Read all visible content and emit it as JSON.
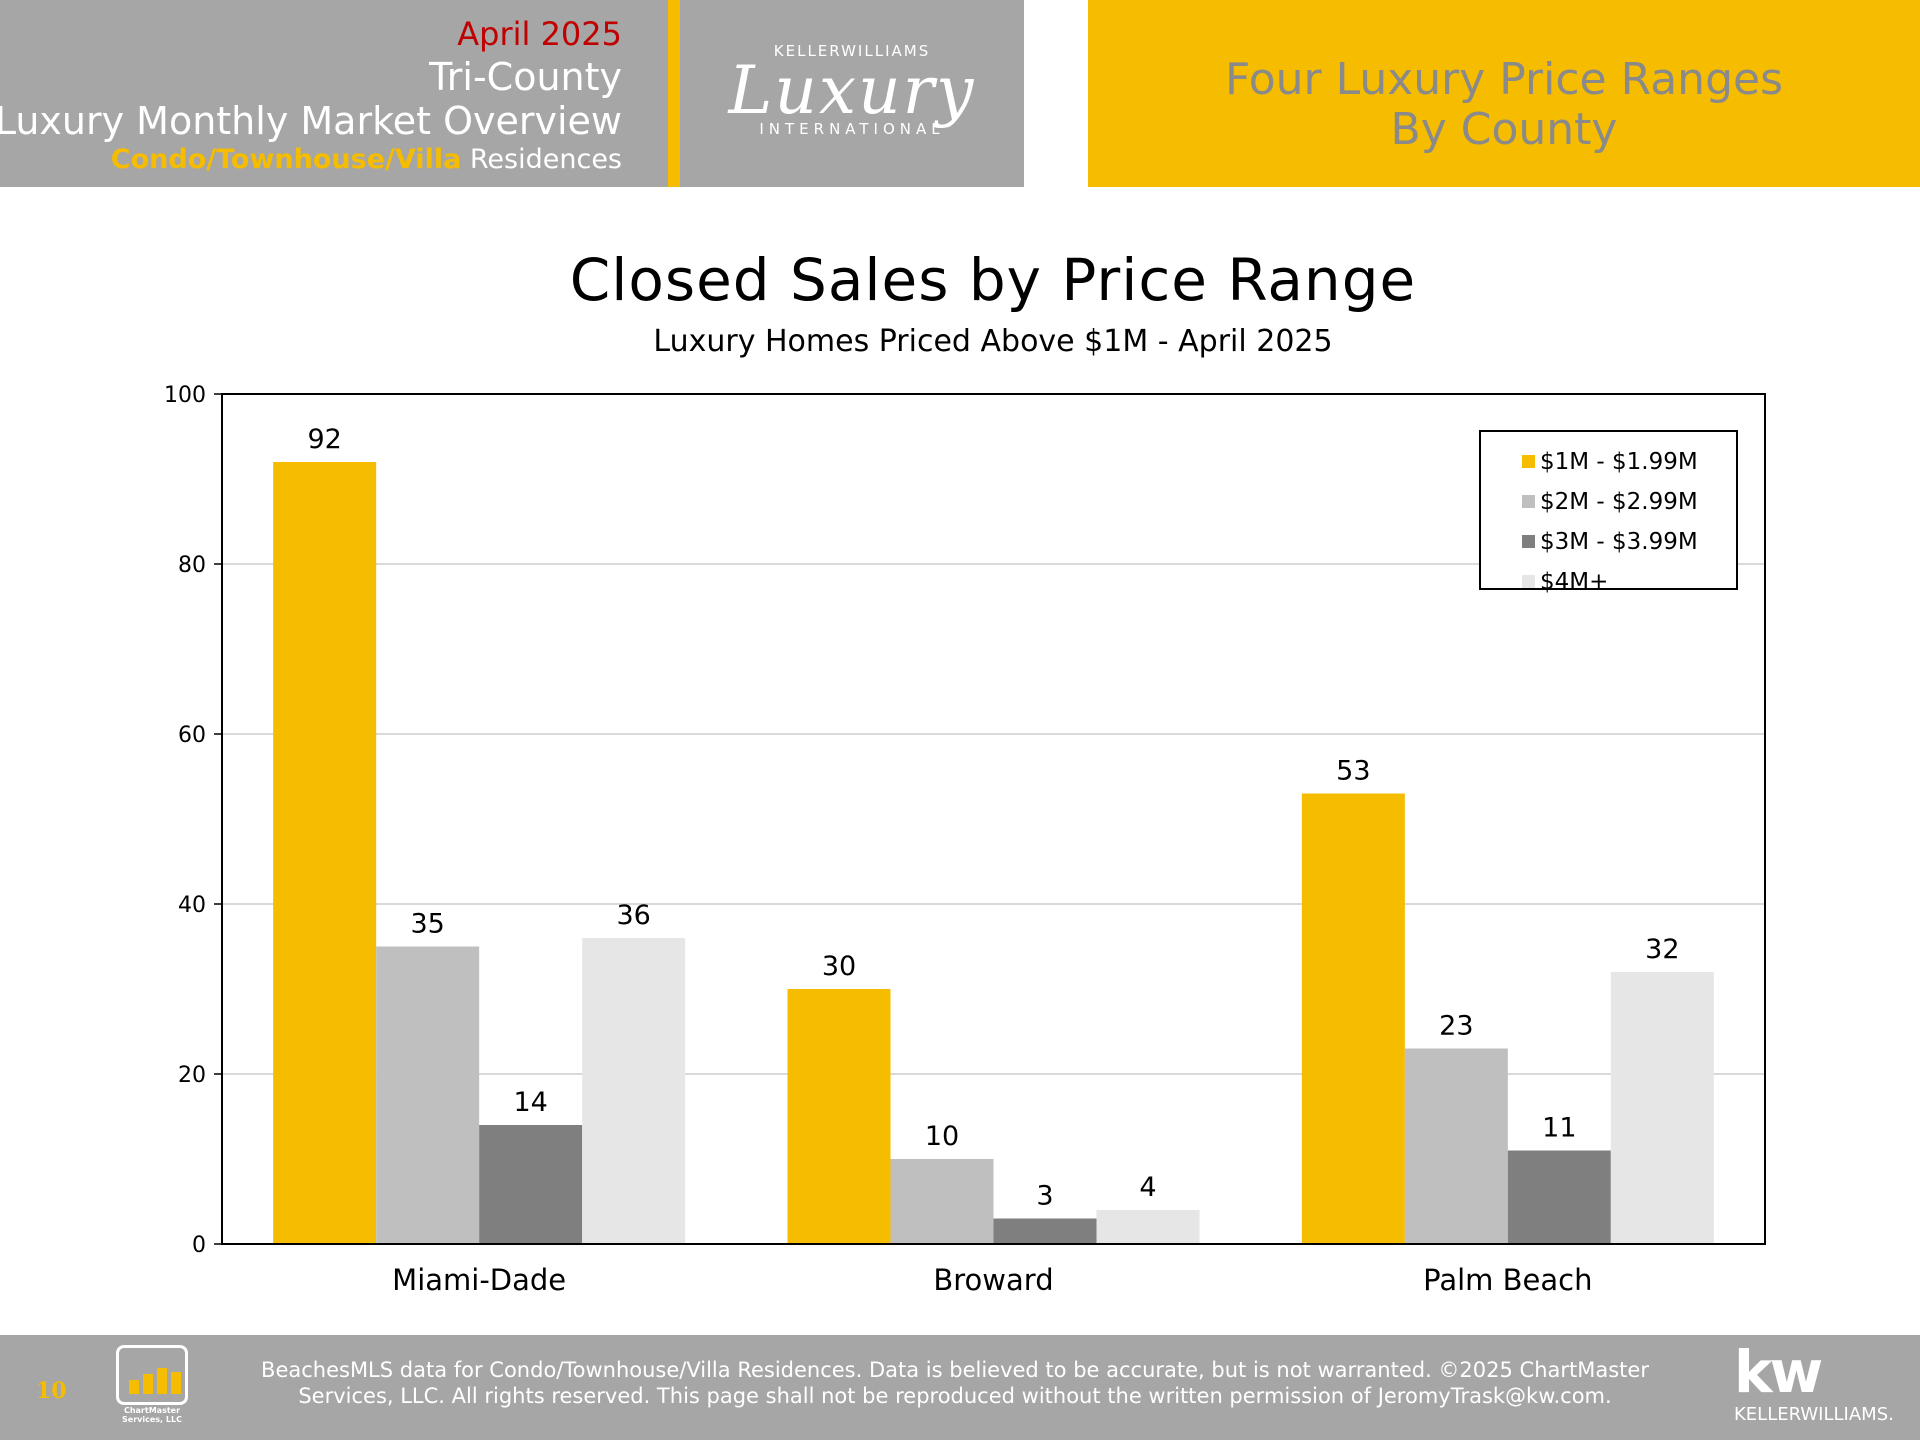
{
  "header": {
    "date": "April 2025",
    "region": "Tri-County",
    "report_title": "Luxury Monthly Market Overview",
    "property_type": "Condo/Townhouse/Villa",
    "property_suffix": " Residences",
    "logo_top": "KELLERWILLIAMS",
    "logo_script": "Luxury",
    "logo_bottom": "INTERNATIONAL",
    "section_title_line1": "Four Luxury Price Ranges",
    "section_title_line2": "By County"
  },
  "colors": {
    "accent_yellow": "#f5bc00",
    "header_gray": "#a6a6a6",
    "date_red": "#c00000"
  },
  "chart_data": {
    "type": "bar",
    "title": "Closed Sales by Price Range",
    "subtitle": "Luxury Homes Priced Above $1M - April 2025",
    "categories": [
      "Miami-Dade",
      "Broward",
      "Palm Beach"
    ],
    "series": [
      {
        "name": "$1M - $1.99M",
        "color": "#f5bc00",
        "values": [
          92,
          30,
          53
        ]
      },
      {
        "name": "$2M - $2.99M",
        "color": "#bfbfbf",
        "values": [
          35,
          10,
          23
        ]
      },
      {
        "name": "$3M - $3.99M",
        "color": "#7f7f7f",
        "values": [
          14,
          3,
          11
        ]
      },
      {
        "name": "$4M+",
        "color": "#e6e6e6",
        "values": [
          36,
          4,
          32
        ]
      }
    ],
    "ylim": [
      0,
      100
    ],
    "yticks": [
      0,
      20,
      40,
      60,
      80,
      100
    ],
    "xlabel": "",
    "ylabel": "",
    "grid": true,
    "legend": "top-right"
  },
  "footer": {
    "page_number": "10",
    "chartmaster_logo_text": "ChartMaster Services, LLC",
    "disclaimer_line1": "BeachesMLS data for Condo/Townhouse/Villa Residences.  Data is believed to be accurate, but is not warranted.   ©2025  ChartMaster",
    "disclaimer_line2": "Services, LLC.  All rights reserved. This page shall not be reproduced without the written permission of JeromyTrask@kw.com.",
    "kw_mark": "kw",
    "kw_name": "KELLERWILLIAMS."
  }
}
